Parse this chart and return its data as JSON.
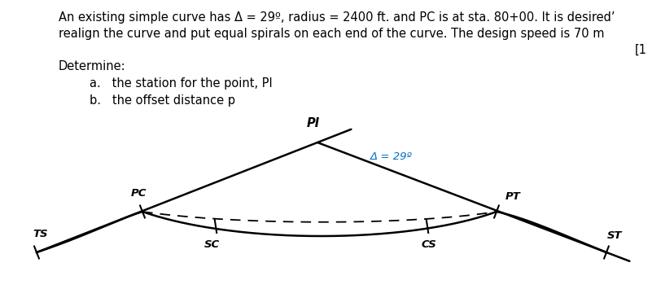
{
  "title_line1": "An existing simple curve has Δ = 29º, radius = 2400 ft. and PC is at sta. 80+00. It is desired’",
  "title_line2": "realign the curve and put equal spirals on each end of the curve. The design speed is 70 m",
  "title_line3": "[1",
  "determine_label": "Determine:",
  "item_a": "a.   the station for the point, PI",
  "item_b": "b.   the offset distance p",
  "delta_label": "Δ = 29º",
  "delta_color": "#0070c0",
  "labels": {
    "PI": "PI",
    "PC": "PC",
    "PT": "PT",
    "TS": "TS",
    "SC": "SC",
    "CS": "CS",
    "ST": "ST"
  },
  "bg_color": "#ffffff",
  "text_color": "#000000",
  "line_color": "#000000",
  "font_size_body": 10.5,
  "font_size_labels": 9.5
}
